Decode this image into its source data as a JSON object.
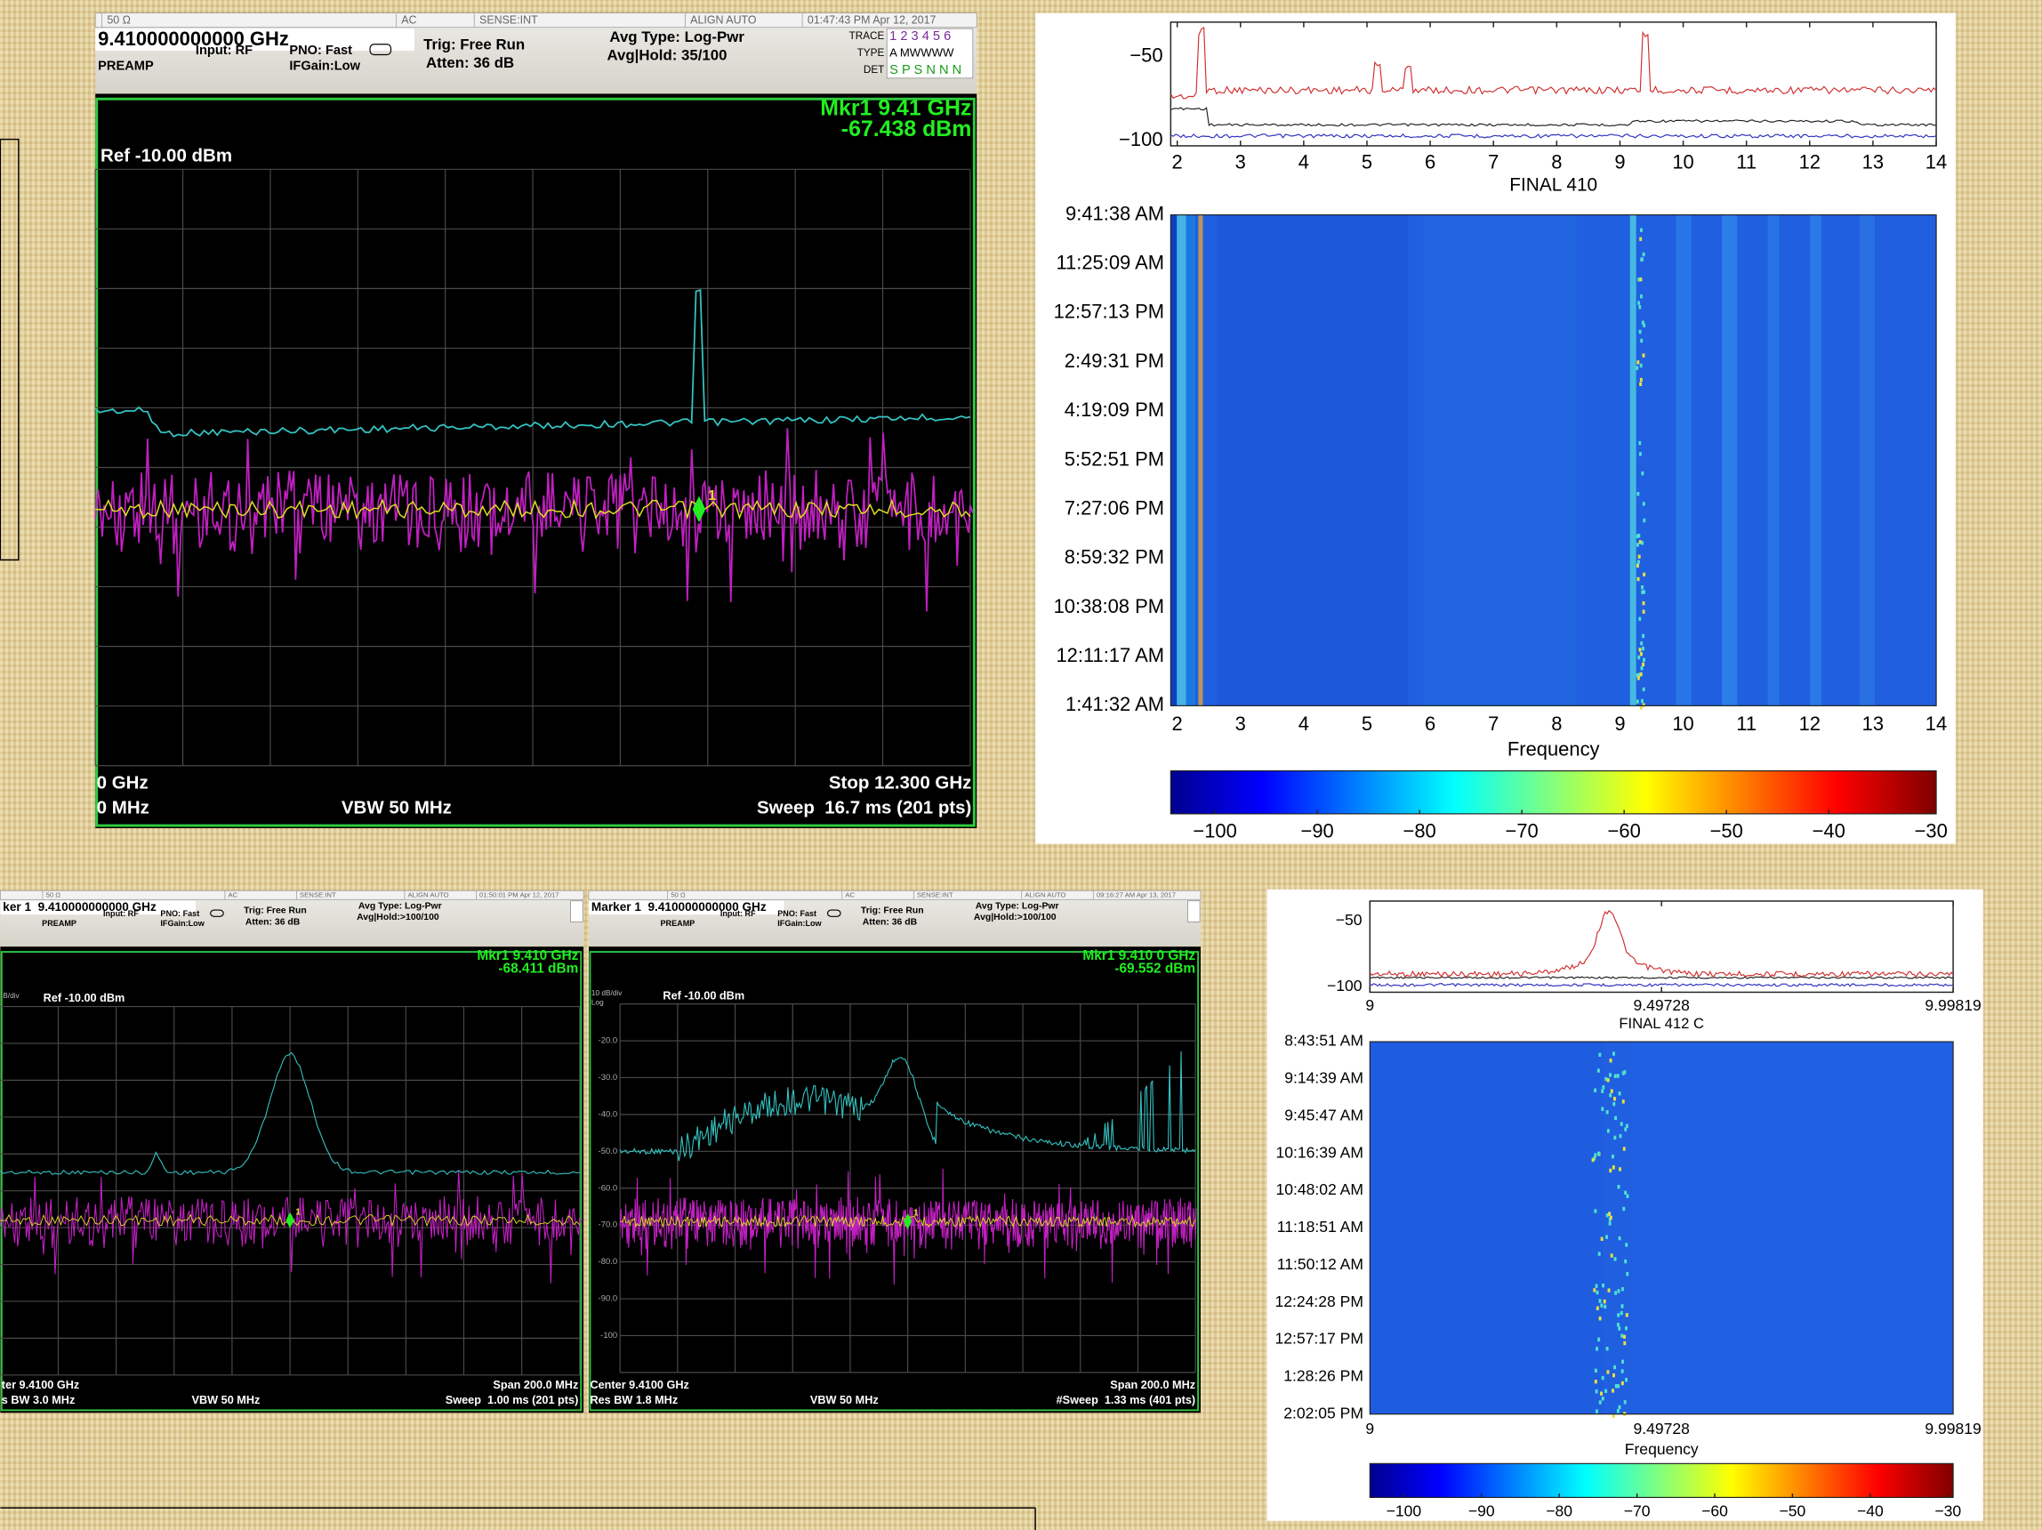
{
  "top_analyzer": {
    "status": [
      "50 Ω",
      "AC",
      "SENSE:INT",
      "ALIGN AUTO",
      "01:47:43 PM Apr 12, 2017"
    ],
    "frequency": "9.410000000000 GHz",
    "input": "Input: RF",
    "pno": "PNO: Fast",
    "ifgain": "IFGain:Low",
    "preamp": "PREAMP",
    "trig": "Trig: Free Run",
    "atten": "Atten: 36 dB",
    "avg_type": "Avg Type: Log-Pwr",
    "avg_hold": "Avg|Hold: 35/100",
    "trace_labels": [
      "TRACE",
      "TYPE",
      "DET"
    ],
    "trace_rows": [
      "1 2 3 4 5 6",
      "A MWWWW",
      "S P S N N N"
    ],
    "marker": "Mkr1 9.41 GHz",
    "marker_value": "-67.438 dBm",
    "marker_id": "1",
    "ref": "Ref -10.00 dBm",
    "footer": [
      "0 GHz",
      "0 MHz",
      "VBW 50 MHz",
      "Stop 12.300 GHz",
      "Sweep  16.7 ms (201 pts)"
    ]
  },
  "bottom_left_analyzer": {
    "title_bar": "ient Spectrum Analyzer - Swept SA",
    "status": [
      "50 Ω",
      "AC",
      "SENSE:INT",
      "ALIGN AUTO",
      "01:50:01 PM Apr 12, 2017"
    ],
    "frequency": "ker 1  9.410000000000 GHz",
    "input": "Input: RF",
    "pno": "PNO: Fast",
    "ifgain": "IFGain:Low",
    "preamp": "PREAMP",
    "trig": "Trig: Free Run",
    "atten": "Atten: 36 dB",
    "avg_type": "Avg Type: Log-Pwr",
    "avg_hold": "Avg|Hold:>100/100",
    "marker": "Mkr1 9.410 GHz",
    "marker_value": "-68.411 dBm",
    "marker_id": "1",
    "scale": "B/div",
    "ref": "Ref -10.00 dBm",
    "footer": [
      "ter 9.4100 GHz",
      "s BW 3.0 MHz",
      "VBW 50 MHz",
      "Span 200.0 MHz",
      "Sweep  1.00 ms (201 pts)"
    ]
  },
  "bottom_right_analyzer": {
    "title_bar": "Agilent Spectrum Analyzer - Swept SA",
    "status": [
      "50 Ω",
      "AC",
      "SENSE:INT",
      "ALIGN AUTO",
      "09:16:27 AM Apr 13, 2017"
    ],
    "frequency": "Marker 1  9.410000000000 GHz",
    "input": "Input: RF",
    "pno": "PNO: Fast",
    "ifgain": "IFGain:Low",
    "preamp": "PREAMP",
    "trig": "Trig: Free Run",
    "atten": "Atten: 36 dB",
    "avg_type": "Avg Type: Log-Pwr",
    "avg_hold": "Avg|Hold:>100/100",
    "marker": "Mkr1 9.410 0 GHz",
    "marker_value": "-69.552 dBm",
    "marker_id": "1",
    "scale": "10 dB/div",
    "log": "Log",
    "ref": "Ref -10.00 dBm",
    "y_labels": [
      "-20.0",
      "-30.0",
      "-40.0",
      "-50.0",
      "-60.0",
      "-70.0",
      "-80.0",
      "-90.0",
      "-100"
    ],
    "footer": [
      "Center 9.4100 GHz",
      "Res BW 1.8 MHz",
      "VBW 50 MHz",
      "Span 200.0 MHz",
      "#Sweep  1.33 ms (401 pts)"
    ]
  },
  "top_waterfall": {
    "y_ticks": [
      "−50",
      "−100"
    ],
    "x_ticks": [
      "2",
      "3",
      "4",
      "5",
      "6",
      "7",
      "8",
      "9",
      "10",
      "11",
      "12",
      "13",
      "14"
    ],
    "title": "FINAL 410",
    "times": [
      "9:41:38 AM",
      "11:25:09 AM",
      "12:57:13 PM",
      "2:49:31 PM",
      "4:19:09 PM",
      "5:52:51 PM",
      "7:27:06 PM",
      "8:59:32 PM",
      "10:38:08 PM",
      "12:11:17 AM",
      "1:41:32 AM"
    ],
    "bottom_x_ticks": [
      "2",
      "3",
      "4",
      "5",
      "6",
      "7",
      "8",
      "9",
      "10",
      "11",
      "12",
      "13",
      "14"
    ],
    "xlabel": "Frequency",
    "colorbar_ticks": [
      "−100",
      "−90",
      "−80",
      "−70",
      "−60",
      "−50",
      "−40",
      "−30"
    ]
  },
  "bottom_waterfall": {
    "y_ticks": [
      "−50",
      "−100"
    ],
    "x_ticks": [
      "9",
      "9.49728",
      "9.99819"
    ],
    "title": "FINAL 412 C",
    "times": [
      "8:43:51 AM",
      "9:14:39 AM",
      "9:45:47 AM",
      "10:16:39 AM",
      "10:48:02 AM",
      "11:18:51 AM",
      "11:50:12 AM",
      "12:24:28 PM",
      "12:57:17 PM",
      "1:28:26 PM",
      "2:02:05 PM"
    ],
    "bottom_x_ticks": [
      "9",
      "9.49728",
      "9.99819"
    ],
    "xlabel": "Frequency",
    "colorbar_ticks": [
      "−100",
      "−90",
      "−80",
      "−70",
      "−60",
      "−50",
      "−40",
      "−30"
    ]
  }
}
